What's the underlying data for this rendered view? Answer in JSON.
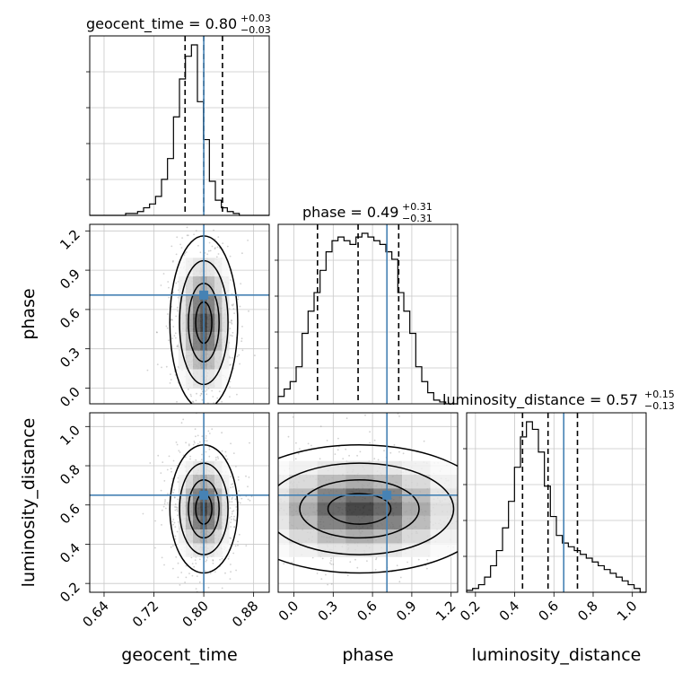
{
  "chart_data": {
    "type": "corner",
    "parameters": [
      "geocent_time",
      "phase",
      "luminosity_distance"
    ],
    "truths": {
      "geocent_time": 0.8,
      "phase": 0.71,
      "luminosity_distance": 0.65
    },
    "titles": {
      "geocent_time": {
        "label": "geocent_time",
        "median": "0.80",
        "plus": "+0.03",
        "minus": "−0.03",
        "quantiles": [
          0.77,
          0.8,
          0.83
        ]
      },
      "phase": {
        "label": "phase",
        "median": "0.49",
        "plus": "+0.31",
        "minus": "−0.31",
        "quantiles": [
          0.18,
          0.49,
          0.8
        ]
      },
      "luminosity_distance": {
        "label": "luminosity_distance",
        "median": "0.57",
        "plus": "+0.15",
        "minus": "−0.13",
        "quantiles": [
          0.44,
          0.57,
          0.72
        ]
      }
    },
    "ranges": {
      "geocent_time": [
        0.617,
        0.905
      ],
      "phase": [
        -0.12,
        1.25
      ],
      "luminosity_distance": [
        0.155,
        1.07
      ]
    },
    "ticks": {
      "geocent_time": [
        "0.64",
        "0.72",
        "0.80",
        "0.88"
      ],
      "phase": [
        "0.0",
        "0.3",
        "0.6",
        "0.9",
        "1.2"
      ],
      "luminosity_distance": [
        "0.2",
        "0.4",
        "0.6",
        "0.8",
        "1.0"
      ],
      "luminosity_distance_ylabels": [
        "0.2",
        "0.4",
        "0.6",
        "0.8",
        "1.0"
      ]
    },
    "histograms": {
      "geocent_time": {
        "start": 0.617,
        "end": 0.905,
        "counts": [
          0,
          0,
          0,
          0,
          0,
          0,
          1,
          1,
          2,
          4,
          6,
          10,
          19,
          30,
          52,
          72,
          84,
          90,
          60,
          40,
          18,
          8,
          4,
          2,
          1,
          0,
          0,
          0,
          0,
          0
        ]
      },
      "phase": {
        "start": -0.12,
        "end": 1.25,
        "counts": [
          4,
          8,
          12,
          20,
          38,
          50,
          60,
          72,
          82,
          88,
          90,
          88,
          86,
          90,
          92,
          90,
          88,
          86,
          82,
          78,
          60,
          50,
          38,
          20,
          12,
          6,
          2,
          1,
          0,
          0
        ]
      },
      "luminosity_distance": {
        "start": 0.155,
        "end": 1.07,
        "counts": [
          1,
          2,
          4,
          8,
          14,
          22,
          34,
          48,
          66,
          82,
          90,
          86,
          74,
          56,
          40,
          30,
          26,
          24,
          22,
          20,
          18,
          16,
          14,
          12,
          10,
          8,
          6,
          4,
          2,
          0
        ]
      }
    },
    "grid": true,
    "color_truth": "#4682b4",
    "color_lines": "#000000"
  }
}
